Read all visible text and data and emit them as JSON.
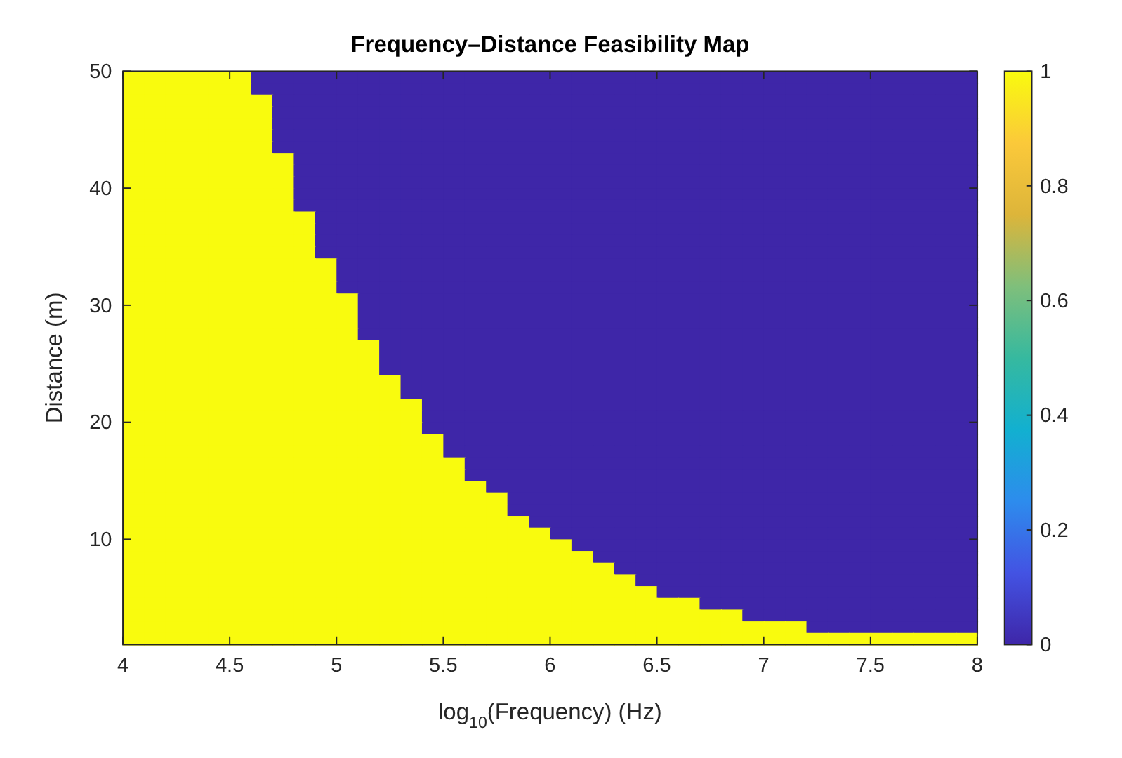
{
  "chart_data": {
    "type": "heatmap",
    "title": "Frequency–Distance Feasibility Map",
    "xlabel": "log$_{10}$(Frequency)  (Hz)",
    "ylabel": "Distance (m)",
    "xlim": [
      4,
      8
    ],
    "xticks": [
      4,
      4.5,
      5,
      5.5,
      6,
      6.5,
      7,
      7.5,
      8
    ],
    "ylim": [
      1,
      50
    ],
    "yticks": [
      10,
      20,
      30,
      40,
      50
    ],
    "clim": [
      0,
      1
    ],
    "cticks": [
      0,
      0.2,
      0.4,
      0.6,
      0.8,
      1
    ],
    "cells": [
      [
        1,
        1,
        1,
        1,
        1,
        1,
        0,
        0,
        0,
        0,
        0,
        0,
        0,
        0,
        0,
        0,
        0,
        0,
        0,
        0,
        0,
        0,
        0,
        0,
        0,
        0,
        0,
        0,
        0,
        0,
        0,
        0,
        0,
        0,
        0,
        0,
        0,
        0,
        0,
        0
      ],
      [
        1,
        1,
        1,
        1,
        1,
        1,
        0,
        0,
        0,
        0,
        0,
        0,
        0,
        0,
        0,
        0,
        0,
        0,
        0,
        0,
        0,
        0,
        0,
        0,
        0,
        0,
        0,
        0,
        0,
        0,
        0,
        0,
        0,
        0,
        0,
        0,
        0,
        0,
        0,
        0
      ],
      [
        1,
        1,
        1,
        1,
        1,
        1,
        1,
        0,
        0,
        0,
        0,
        0,
        0,
        0,
        0,
        0,
        0,
        0,
        0,
        0,
        0,
        0,
        0,
        0,
        0,
        0,
        0,
        0,
        0,
        0,
        0,
        0,
        0,
        0,
        0,
        0,
        0,
        0,
        0,
        0
      ],
      [
        1,
        1,
        1,
        1,
        1,
        1,
        1,
        0,
        0,
        0,
        0,
        0,
        0,
        0,
        0,
        0,
        0,
        0,
        0,
        0,
        0,
        0,
        0,
        0,
        0,
        0,
        0,
        0,
        0,
        0,
        0,
        0,
        0,
        0,
        0,
        0,
        0,
        0,
        0,
        0
      ],
      [
        1,
        1,
        1,
        1,
        1,
        1,
        1,
        0,
        0,
        0,
        0,
        0,
        0,
        0,
        0,
        0,
        0,
        0,
        0,
        0,
        0,
        0,
        0,
        0,
        0,
        0,
        0,
        0,
        0,
        0,
        0,
        0,
        0,
        0,
        0,
        0,
        0,
        0,
        0,
        0
      ],
      [
        1,
        1,
        1,
        1,
        1,
        1,
        1,
        0,
        0,
        0,
        0,
        0,
        0,
        0,
        0,
        0,
        0,
        0,
        0,
        0,
        0,
        0,
        0,
        0,
        0,
        0,
        0,
        0,
        0,
        0,
        0,
        0,
        0,
        0,
        0,
        0,
        0,
        0,
        0,
        0
      ],
      [
        1,
        1,
        1,
        1,
        1,
        1,
        1,
        0,
        0,
        0,
        0,
        0,
        0,
        0,
        0,
        0,
        0,
        0,
        0,
        0,
        0,
        0,
        0,
        0,
        0,
        0,
        0,
        0,
        0,
        0,
        0,
        0,
        0,
        0,
        0,
        0,
        0,
        0,
        0,
        0
      ],
      [
        1,
        1,
        1,
        1,
        1,
        1,
        1,
        1,
        0,
        0,
        0,
        0,
        0,
        0,
        0,
        0,
        0,
        0,
        0,
        0,
        0,
        0,
        0,
        0,
        0,
        0,
        0,
        0,
        0,
        0,
        0,
        0,
        0,
        0,
        0,
        0,
        0,
        0,
        0,
        0
      ],
      [
        1,
        1,
        1,
        1,
        1,
        1,
        1,
        1,
        0,
        0,
        0,
        0,
        0,
        0,
        0,
        0,
        0,
        0,
        0,
        0,
        0,
        0,
        0,
        0,
        0,
        0,
        0,
        0,
        0,
        0,
        0,
        0,
        0,
        0,
        0,
        0,
        0,
        0,
        0,
        0
      ],
      [
        1,
        1,
        1,
        1,
        1,
        1,
        1,
        1,
        0,
        0,
        0,
        0,
        0,
        0,
        0,
        0,
        0,
        0,
        0,
        0,
        0,
        0,
        0,
        0,
        0,
        0,
        0,
        0,
        0,
        0,
        0,
        0,
        0,
        0,
        0,
        0,
        0,
        0,
        0,
        0
      ],
      [
        1,
        1,
        1,
        1,
        1,
        1,
        1,
        1,
        0,
        0,
        0,
        0,
        0,
        0,
        0,
        0,
        0,
        0,
        0,
        0,
        0,
        0,
        0,
        0,
        0,
        0,
        0,
        0,
        0,
        0,
        0,
        0,
        0,
        0,
        0,
        0,
        0,
        0,
        0,
        0
      ],
      [
        1,
        1,
        1,
        1,
        1,
        1,
        1,
        1,
        0,
        0,
        0,
        0,
        0,
        0,
        0,
        0,
        0,
        0,
        0,
        0,
        0,
        0,
        0,
        0,
        0,
        0,
        0,
        0,
        0,
        0,
        0,
        0,
        0,
        0,
        0,
        0,
        0,
        0,
        0,
        0
      ],
      [
        1,
        1,
        1,
        1,
        1,
        1,
        1,
        1,
        1,
        0,
        0,
        0,
        0,
        0,
        0,
        0,
        0,
        0,
        0,
        0,
        0,
        0,
        0,
        0,
        0,
        0,
        0,
        0,
        0,
        0,
        0,
        0,
        0,
        0,
        0,
        0,
        0,
        0,
        0,
        0
      ],
      [
        1,
        1,
        1,
        1,
        1,
        1,
        1,
        1,
        1,
        0,
        0,
        0,
        0,
        0,
        0,
        0,
        0,
        0,
        0,
        0,
        0,
        0,
        0,
        0,
        0,
        0,
        0,
        0,
        0,
        0,
        0,
        0,
        0,
        0,
        0,
        0,
        0,
        0,
        0,
        0
      ],
      [
        1,
        1,
        1,
        1,
        1,
        1,
        1,
        1,
        1,
        0,
        0,
        0,
        0,
        0,
        0,
        0,
        0,
        0,
        0,
        0,
        0,
        0,
        0,
        0,
        0,
        0,
        0,
        0,
        0,
        0,
        0,
        0,
        0,
        0,
        0,
        0,
        0,
        0,
        0,
        0
      ],
      [
        1,
        1,
        1,
        1,
        1,
        1,
        1,
        1,
        1,
        0,
        0,
        0,
        0,
        0,
        0,
        0,
        0,
        0,
        0,
        0,
        0,
        0,
        0,
        0,
        0,
        0,
        0,
        0,
        0,
        0,
        0,
        0,
        0,
        0,
        0,
        0,
        0,
        0,
        0,
        0
      ],
      [
        1,
        1,
        1,
        1,
        1,
        1,
        1,
        1,
        1,
        1,
        0,
        0,
        0,
        0,
        0,
        0,
        0,
        0,
        0,
        0,
        0,
        0,
        0,
        0,
        0,
        0,
        0,
        0,
        0,
        0,
        0,
        0,
        0,
        0,
        0,
        0,
        0,
        0,
        0,
        0
      ],
      [
        1,
        1,
        1,
        1,
        1,
        1,
        1,
        1,
        1,
        1,
        0,
        0,
        0,
        0,
        0,
        0,
        0,
        0,
        0,
        0,
        0,
        0,
        0,
        0,
        0,
        0,
        0,
        0,
        0,
        0,
        0,
        0,
        0,
        0,
        0,
        0,
        0,
        0,
        0,
        0
      ],
      [
        1,
        1,
        1,
        1,
        1,
        1,
        1,
        1,
        1,
        1,
        0,
        0,
        0,
        0,
        0,
        0,
        0,
        0,
        0,
        0,
        0,
        0,
        0,
        0,
        0,
        0,
        0,
        0,
        0,
        0,
        0,
        0,
        0,
        0,
        0,
        0,
        0,
        0,
        0,
        0
      ],
      [
        1,
        1,
        1,
        1,
        1,
        1,
        1,
        1,
        1,
        1,
        1,
        0,
        0,
        0,
        0,
        0,
        0,
        0,
        0,
        0,
        0,
        0,
        0,
        0,
        0,
        0,
        0,
        0,
        0,
        0,
        0,
        0,
        0,
        0,
        0,
        0,
        0,
        0,
        0,
        0
      ],
      [
        1,
        1,
        1,
        1,
        1,
        1,
        1,
        1,
        1,
        1,
        1,
        0,
        0,
        0,
        0,
        0,
        0,
        0,
        0,
        0,
        0,
        0,
        0,
        0,
        0,
        0,
        0,
        0,
        0,
        0,
        0,
        0,
        0,
        0,
        0,
        0,
        0,
        0,
        0,
        0
      ],
      [
        1,
        1,
        1,
        1,
        1,
        1,
        1,
        1,
        1,
        1,
        1,
        0,
        0,
        0,
        0,
        0,
        0,
        0,
        0,
        0,
        0,
        0,
        0,
        0,
        0,
        0,
        0,
        0,
        0,
        0,
        0,
        0,
        0,
        0,
        0,
        0,
        0,
        0,
        0,
        0
      ],
      [
        1,
        1,
        1,
        1,
        1,
        1,
        1,
        1,
        1,
        1,
        1,
        0,
        0,
        0,
        0,
        0,
        0,
        0,
        0,
        0,
        0,
        0,
        0,
        0,
        0,
        0,
        0,
        0,
        0,
        0,
        0,
        0,
        0,
        0,
        0,
        0,
        0,
        0,
        0,
        0
      ],
      [
        1,
        1,
        1,
        1,
        1,
        1,
        1,
        1,
        1,
        1,
        1,
        1,
        0,
        0,
        0,
        0,
        0,
        0,
        0,
        0,
        0,
        0,
        0,
        0,
        0,
        0,
        0,
        0,
        0,
        0,
        0,
        0,
        0,
        0,
        0,
        0,
        0,
        0,
        0,
        0
      ],
      [
        1,
        1,
        1,
        1,
        1,
        1,
        1,
        1,
        1,
        1,
        1,
        1,
        0,
        0,
        0,
        0,
        0,
        0,
        0,
        0,
        0,
        0,
        0,
        0,
        0,
        0,
        0,
        0,
        0,
        0,
        0,
        0,
        0,
        0,
        0,
        0,
        0,
        0,
        0,
        0
      ],
      [
        1,
        1,
        1,
        1,
        1,
        1,
        1,
        1,
        1,
        1,
        1,
        1,
        0,
        0,
        0,
        0,
        0,
        0,
        0,
        0,
        0,
        0,
        0,
        0,
        0,
        0,
        0,
        0,
        0,
        0,
        0,
        0,
        0,
        0,
        0,
        0,
        0,
        0,
        0,
        0
      ],
      [
        1,
        1,
        1,
        1,
        1,
        1,
        1,
        1,
        1,
        1,
        1,
        1,
        1,
        0,
        0,
        0,
        0,
        0,
        0,
        0,
        0,
        0,
        0,
        0,
        0,
        0,
        0,
        0,
        0,
        0,
        0,
        0,
        0,
        0,
        0,
        0,
        0,
        0,
        0,
        0
      ],
      [
        1,
        1,
        1,
        1,
        1,
        1,
        1,
        1,
        1,
        1,
        1,
        1,
        1,
        0,
        0,
        0,
        0,
        0,
        0,
        0,
        0,
        0,
        0,
        0,
        0,
        0,
        0,
        0,
        0,
        0,
        0,
        0,
        0,
        0,
        0,
        0,
        0,
        0,
        0,
        0
      ],
      [
        1,
        1,
        1,
        1,
        1,
        1,
        1,
        1,
        1,
        1,
        1,
        1,
        1,
        1,
        0,
        0,
        0,
        0,
        0,
        0,
        0,
        0,
        0,
        0,
        0,
        0,
        0,
        0,
        0,
        0,
        0,
        0,
        0,
        0,
        0,
        0,
        0,
        0,
        0,
        0
      ],
      [
        1,
        1,
        1,
        1,
        1,
        1,
        1,
        1,
        1,
        1,
        1,
        1,
        1,
        1,
        0,
        0,
        0,
        0,
        0,
        0,
        0,
        0,
        0,
        0,
        0,
        0,
        0,
        0,
        0,
        0,
        0,
        0,
        0,
        0,
        0,
        0,
        0,
        0,
        0,
        0
      ],
      [
        1,
        1,
        1,
        1,
        1,
        1,
        1,
        1,
        1,
        1,
        1,
        1,
        1,
        1,
        0,
        0,
        0,
        0,
        0,
        0,
        0,
        0,
        0,
        0,
        0,
        0,
        0,
        0,
        0,
        0,
        0,
        0,
        0,
        0,
        0,
        0,
        0,
        0,
        0,
        0
      ],
      [
        1,
        1,
        1,
        1,
        1,
        1,
        1,
        1,
        1,
        1,
        1,
        1,
        1,
        1,
        1,
        0,
        0,
        0,
        0,
        0,
        0,
        0,
        0,
        0,
        0,
        0,
        0,
        0,
        0,
        0,
        0,
        0,
        0,
        0,
        0,
        0,
        0,
        0,
        0,
        0
      ],
      [
        1,
        1,
        1,
        1,
        1,
        1,
        1,
        1,
        1,
        1,
        1,
        1,
        1,
        1,
        1,
        0,
        0,
        0,
        0,
        0,
        0,
        0,
        0,
        0,
        0,
        0,
        0,
        0,
        0,
        0,
        0,
        0,
        0,
        0,
        0,
        0,
        0,
        0,
        0,
        0
      ],
      [
        1,
        1,
        1,
        1,
        1,
        1,
        1,
        1,
        1,
        1,
        1,
        1,
        1,
        1,
        1,
        1,
        0,
        0,
        0,
        0,
        0,
        0,
        0,
        0,
        0,
        0,
        0,
        0,
        0,
        0,
        0,
        0,
        0,
        0,
        0,
        0,
        0,
        0,
        0,
        0
      ],
      [
        1,
        1,
        1,
        1,
        1,
        1,
        1,
        1,
        1,
        1,
        1,
        1,
        1,
        1,
        1,
        1,
        0,
        0,
        0,
        0,
        0,
        0,
        0,
        0,
        0,
        0,
        0,
        0,
        0,
        0,
        0,
        0,
        0,
        0,
        0,
        0,
        0,
        0,
        0,
        0
      ],
      [
        1,
        1,
        1,
        1,
        1,
        1,
        1,
        1,
        1,
        1,
        1,
        1,
        1,
        1,
        1,
        1,
        1,
        0,
        0,
        0,
        0,
        0,
        0,
        0,
        0,
        0,
        0,
        0,
        0,
        0,
        0,
        0,
        0,
        0,
        0,
        0,
        0,
        0,
        0,
        0
      ],
      [
        1,
        1,
        1,
        1,
        1,
        1,
        1,
        1,
        1,
        1,
        1,
        1,
        1,
        1,
        1,
        1,
        1,
        1,
        0,
        0,
        0,
        0,
        0,
        0,
        0,
        0,
        0,
        0,
        0,
        0,
        0,
        0,
        0,
        0,
        0,
        0,
        0,
        0,
        0,
        0
      ],
      [
        1,
        1,
        1,
        1,
        1,
        1,
        1,
        1,
        1,
        1,
        1,
        1,
        1,
        1,
        1,
        1,
        1,
        1,
        0,
        0,
        0,
        0,
        0,
        0,
        0,
        0,
        0,
        0,
        0,
        0,
        0,
        0,
        0,
        0,
        0,
        0,
        0,
        0,
        0,
        0
      ],
      [
        1,
        1,
        1,
        1,
        1,
        1,
        1,
        1,
        1,
        1,
        1,
        1,
        1,
        1,
        1,
        1,
        1,
        1,
        1,
        0,
        0,
        0,
        0,
        0,
        0,
        0,
        0,
        0,
        0,
        0,
        0,
        0,
        0,
        0,
        0,
        0,
        0,
        0,
        0,
        0
      ],
      [
        1,
        1,
        1,
        1,
        1,
        1,
        1,
        1,
        1,
        1,
        1,
        1,
        1,
        1,
        1,
        1,
        1,
        1,
        1,
        1,
        0,
        0,
        0,
        0,
        0,
        0,
        0,
        0,
        0,
        0,
        0,
        0,
        0,
        0,
        0,
        0,
        0,
        0,
        0,
        0
      ],
      [
        1,
        1,
        1,
        1,
        1,
        1,
        1,
        1,
        1,
        1,
        1,
        1,
        1,
        1,
        1,
        1,
        1,
        1,
        1,
        1,
        1,
        0,
        0,
        0,
        0,
        0,
        0,
        0,
        0,
        0,
        0,
        0,
        0,
        0,
        0,
        0,
        0,
        0,
        0,
        0
      ],
      [
        1,
        1,
        1,
        1,
        1,
        1,
        1,
        1,
        1,
        1,
        1,
        1,
        1,
        1,
        1,
        1,
        1,
        1,
        1,
        1,
        1,
        1,
        0,
        0,
        0,
        0,
        0,
        0,
        0,
        0,
        0,
        0,
        0,
        0,
        0,
        0,
        0,
        0,
        0,
        0
      ],
      [
        1,
        1,
        1,
        1,
        1,
        1,
        1,
        1,
        1,
        1,
        1,
        1,
        1,
        1,
        1,
        1,
        1,
        1,
        1,
        1,
        1,
        1,
        1,
        0,
        0,
        0,
        0,
        0,
        0,
        0,
        0,
        0,
        0,
        0,
        0,
        0,
        0,
        0,
        0,
        0
      ],
      [
        1,
        1,
        1,
        1,
        1,
        1,
        1,
        1,
        1,
        1,
        1,
        1,
        1,
        1,
        1,
        1,
        1,
        1,
        1,
        1,
        1,
        1,
        1,
        1,
        0,
        0,
        0,
        0,
        0,
        0,
        0,
        0,
        0,
        0,
        0,
        0,
        0,
        0,
        0,
        0
      ],
      [
        1,
        1,
        1,
        1,
        1,
        1,
        1,
        1,
        1,
        1,
        1,
        1,
        1,
        1,
        1,
        1,
        1,
        1,
        1,
        1,
        1,
        1,
        1,
        1,
        1,
        0,
        0,
        0,
        0,
        0,
        0,
        0,
        0,
        0,
        0,
        0,
        0,
        0,
        0,
        0
      ],
      [
        1,
        1,
        1,
        1,
        1,
        1,
        1,
        1,
        1,
        1,
        1,
        1,
        1,
        1,
        1,
        1,
        1,
        1,
        1,
        1,
        1,
        1,
        1,
        1,
        1,
        1,
        1,
        0,
        0,
        0,
        0,
        0,
        0,
        0,
        0,
        0,
        0,
        0,
        0,
        0
      ],
      [
        1,
        1,
        1,
        1,
        1,
        1,
        1,
        1,
        1,
        1,
        1,
        1,
        1,
        1,
        1,
        1,
        1,
        1,
        1,
        1,
        1,
        1,
        1,
        1,
        1,
        1,
        1,
        1,
        1,
        0,
        0,
        0,
        0,
        0,
        0,
        0,
        0,
        0,
        0,
        0
      ],
      [
        1,
        1,
        1,
        1,
        1,
        1,
        1,
        1,
        1,
        1,
        1,
        1,
        1,
        1,
        1,
        1,
        1,
        1,
        1,
        1,
        1,
        1,
        1,
        1,
        1,
        1,
        1,
        1,
        1,
        1,
        1,
        1,
        0,
        0,
        0,
        0,
        0,
        0,
        0,
        0
      ],
      [
        1,
        1,
        1,
        1,
        1,
        1,
        1,
        1,
        1,
        1,
        1,
        1,
        1,
        1,
        1,
        1,
        1,
        1,
        1,
        1,
        1,
        1,
        1,
        1,
        1,
        1,
        1,
        1,
        1,
        1,
        1,
        1,
        1,
        1,
        1,
        1,
        1,
        1,
        1,
        1
      ]
    ]
  }
}
